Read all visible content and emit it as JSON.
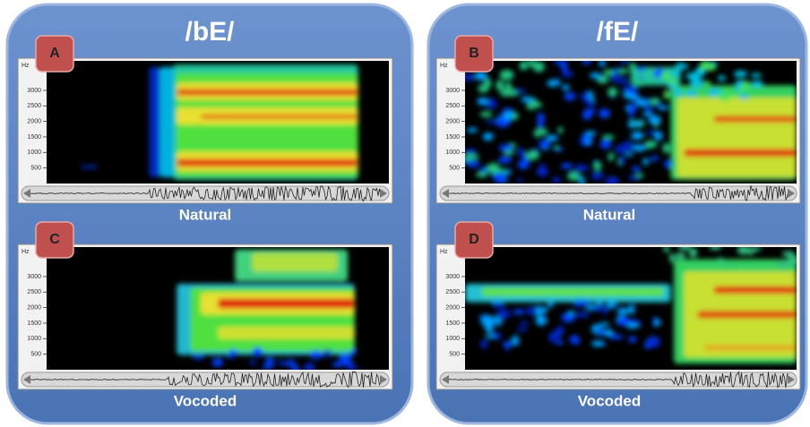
{
  "panels": [
    {
      "title": "/bE/",
      "plots": [
        {
          "letter": "A",
          "unit": "Hz",
          "yticks": [
            3000,
            2500,
            2000,
            1500,
            1000,
            500
          ],
          "caption": "Natural"
        },
        {
          "letter": "C",
          "unit": "Hz",
          "yticks": [
            3000,
            2500,
            2000,
            1500,
            1000,
            500
          ],
          "caption": "Vocoded"
        }
      ]
    },
    {
      "title": "/fE/",
      "plots": [
        {
          "letter": "B",
          "unit": "Hz",
          "yticks": [
            3000,
            2500,
            2000,
            1500,
            1000,
            500
          ],
          "caption": "Natural"
        },
        {
          "letter": "D",
          "unit": "Hz",
          "yticks": [
            3000,
            2500,
            2000,
            1500,
            1000,
            500
          ],
          "caption": "Vocoded"
        }
      ]
    }
  ]
}
